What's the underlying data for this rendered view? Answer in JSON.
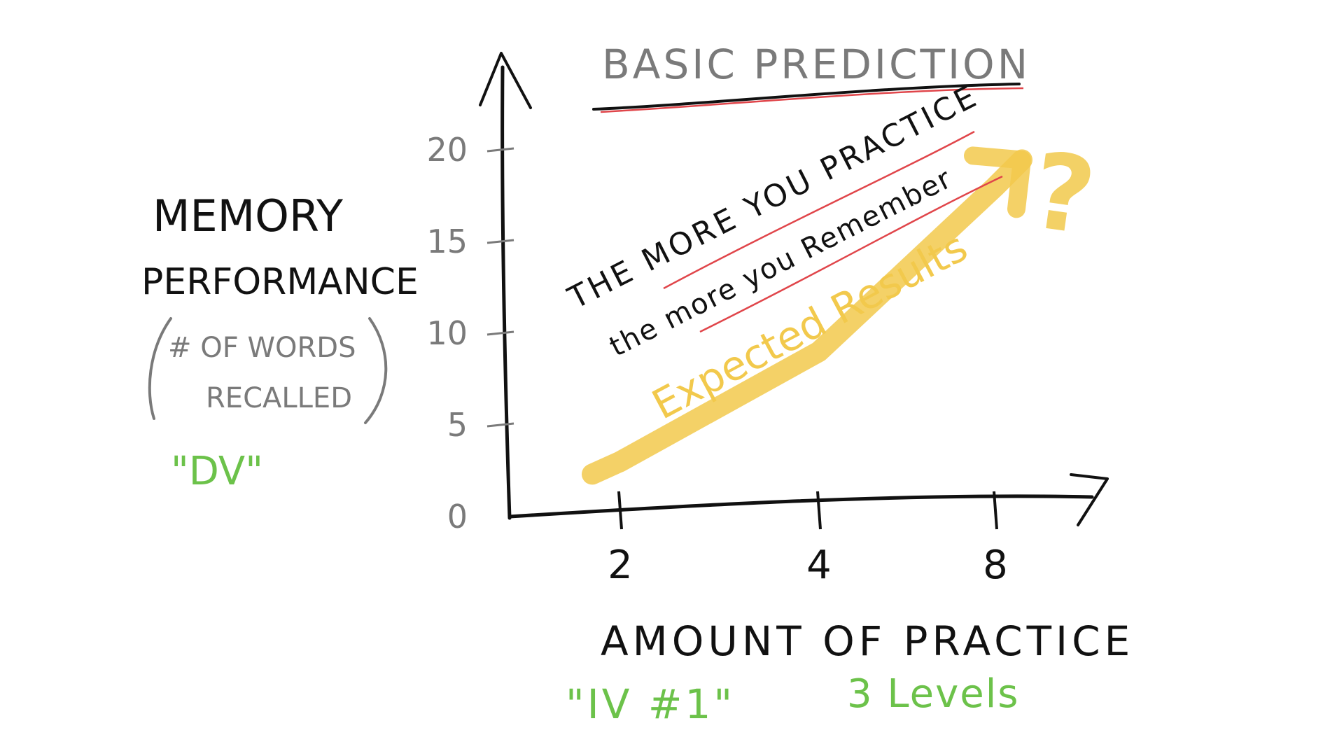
{
  "chart_data": {
    "type": "line",
    "title": "BASIC PREDICTION",
    "ylabel": {
      "line1": "MEMORY",
      "line2": "PERFORMANCE",
      "paren_line1": "# OF WORDS",
      "paren_line2": "RECALLED",
      "role": "\"DV\""
    },
    "xlabel": {
      "text": "AMOUNT OF PRACTICE",
      "role": "\"IV #1\"",
      "levels": "3 Levels"
    },
    "y_ticks": [
      "0",
      "5",
      "10",
      "15",
      "20"
    ],
    "x_ticks": [
      "2",
      "4",
      "8"
    ],
    "ylim": [
      0,
      20
    ],
    "prediction_line1": "THE MORE YOU PRACTICE",
    "prediction_line2": "the more you Remember",
    "series": [
      {
        "name": "Expected Results",
        "x": [
          2,
          4,
          8
        ],
        "values": [
          3,
          9,
          18
        ]
      }
    ],
    "trend_end_mark": "?",
    "grid": false,
    "colors": {
      "ink": "#111111",
      "axis_label": "#7a7a7a",
      "underline": "#e0454a",
      "trend": "#f2c94c",
      "annotation": "#6cc24a"
    }
  }
}
